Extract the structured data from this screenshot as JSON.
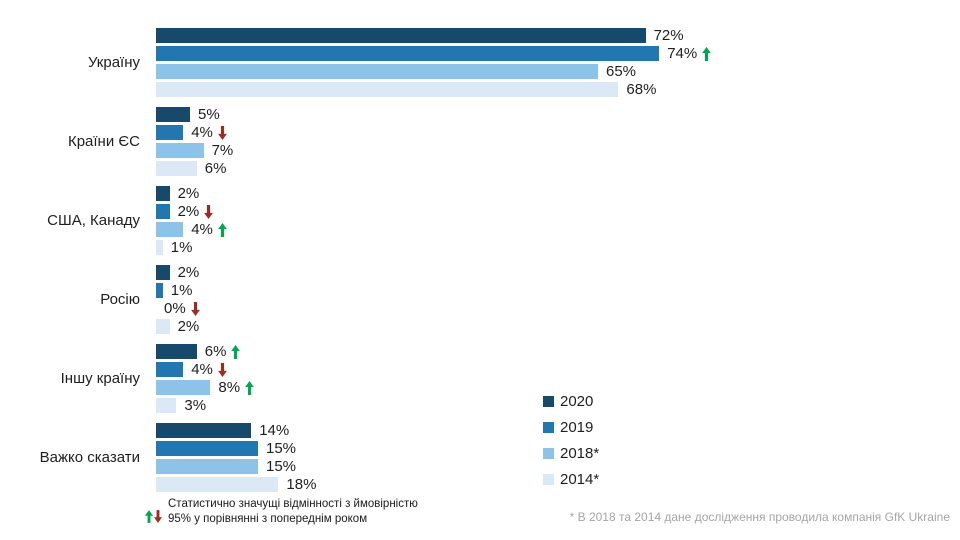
{
  "chart_data": {
    "type": "bar",
    "orientation": "horizontal",
    "title": "",
    "categories": [
      "Україну",
      "Країни ЄС",
      "США, Канаду",
      "Росію",
      "Іншу країну",
      "Важко сказати"
    ],
    "series": [
      {
        "name": "2020",
        "color": "#17496b",
        "values": [
          72,
          5,
          2,
          2,
          6,
          14
        ],
        "markers": [
          null,
          null,
          null,
          null,
          "up",
          null
        ]
      },
      {
        "name": "2019",
        "color": "#2377b0",
        "values": [
          74,
          4,
          2,
          1,
          4,
          15
        ],
        "markers": [
          "up",
          "down",
          "down",
          null,
          "down",
          null
        ]
      },
      {
        "name": "2018*",
        "color": "#8dc3e9",
        "values": [
          65,
          7,
          4,
          0,
          8,
          15
        ],
        "markers": [
          null,
          null,
          "up",
          "down",
          "up",
          null
        ]
      },
      {
        "name": "2014*",
        "color": "#dbe9f6",
        "values": [
          68,
          6,
          1,
          2,
          3,
          18
        ],
        "markers": [
          null,
          null,
          null,
          null,
          null,
          null
        ]
      }
    ],
    "value_suffix": "%",
    "xlim": [
      0,
      100
    ],
    "grid": false,
    "axis_visible": false,
    "legend_position": "middle-right"
  },
  "legend": {
    "items": [
      {
        "label": "2020",
        "color": "#17496b"
      },
      {
        "label": "2019",
        "color": "#2377b0"
      },
      {
        "label": "2018*",
        "color": "#8dc3e9"
      },
      {
        "label": "2014*",
        "color": "#dbe9f6"
      }
    ]
  },
  "footnotes": {
    "significance_line1": "Статистично значущі відмінності з  ймовірністю",
    "significance_line2": "95% у порівнянні з попереднім роком",
    "source": "* В 2018 та 2014 дане дослідження проводила компанія GfK Ukraine"
  },
  "colors": {
    "arrow_up": "#00a651",
    "arrow_down": "#9e2b23",
    "bar_2020": "#17496b",
    "bar_2019": "#2377b0",
    "bar_2018": "#8dc3e9",
    "bar_2014": "#dbe9f6",
    "source_text": "#a6a6a6"
  }
}
